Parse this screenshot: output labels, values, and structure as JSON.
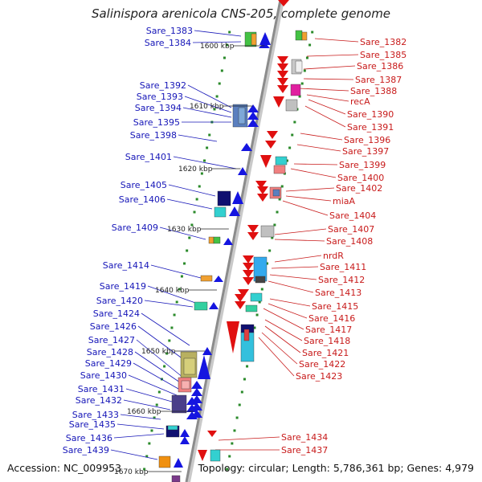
{
  "title": "Salinispora arenicola CNS-205, complete genome",
  "accession": "Accession: NC_009953",
  "topology": "Topology: circular; Length: 5,786,361 bp; Genes: 4,979",
  "colors": {
    "left_label": "#1616b8",
    "right_label": "#c81a1a",
    "backbone": "#8c8c8c",
    "tick": "#2a8a2a"
  },
  "kbp_ticks": [
    "1600 kbp",
    "1610 kbp",
    "1620 kbp",
    "1630 kbp",
    "1640 kbp",
    "1650 kbp",
    "1660 kbp",
    "1670 kbp"
  ],
  "left_labels": [
    "Sare_1383",
    "Sare_1384",
    "Sare_1392",
    "Sare_1393",
    "Sare_1394",
    "Sare_1395",
    "Sare_1398",
    "Sare_1401",
    "Sare_1405",
    "Sare_1406",
    "Sare_1409",
    "Sare_1414",
    "Sare_1419",
    "Sare_1420",
    "Sare_1424",
    "Sare_1426",
    "Sare_1427",
    "Sare_1428",
    "Sare_1429",
    "Sare_1430",
    "Sare_1431",
    "Sare_1432",
    "Sare_1433",
    "Sare_1435",
    "Sare_1436",
    "Sare_1439"
  ],
  "right_labels": [
    "Sare_1382",
    "Sare_1385",
    "Sare_1386",
    "Sare_1387",
    "Sare_1388",
    "recA",
    "Sare_1390",
    "Sare_1391",
    "Sare_1396",
    "Sare_1397",
    "Sare_1399",
    "Sare_1400",
    "Sare_1402",
    "miaA",
    "Sare_1404",
    "Sare_1407",
    "Sare_1408",
    "nrdR",
    "Sare_1411",
    "Sare_1412",
    "Sare_1413",
    "Sare_1415",
    "Sare_1416",
    "Sare_1417",
    "Sare_1418",
    "Sare_1421",
    "Sare_1422",
    "Sare_1423",
    "Sare_1434",
    "Sare_1437"
  ]
}
